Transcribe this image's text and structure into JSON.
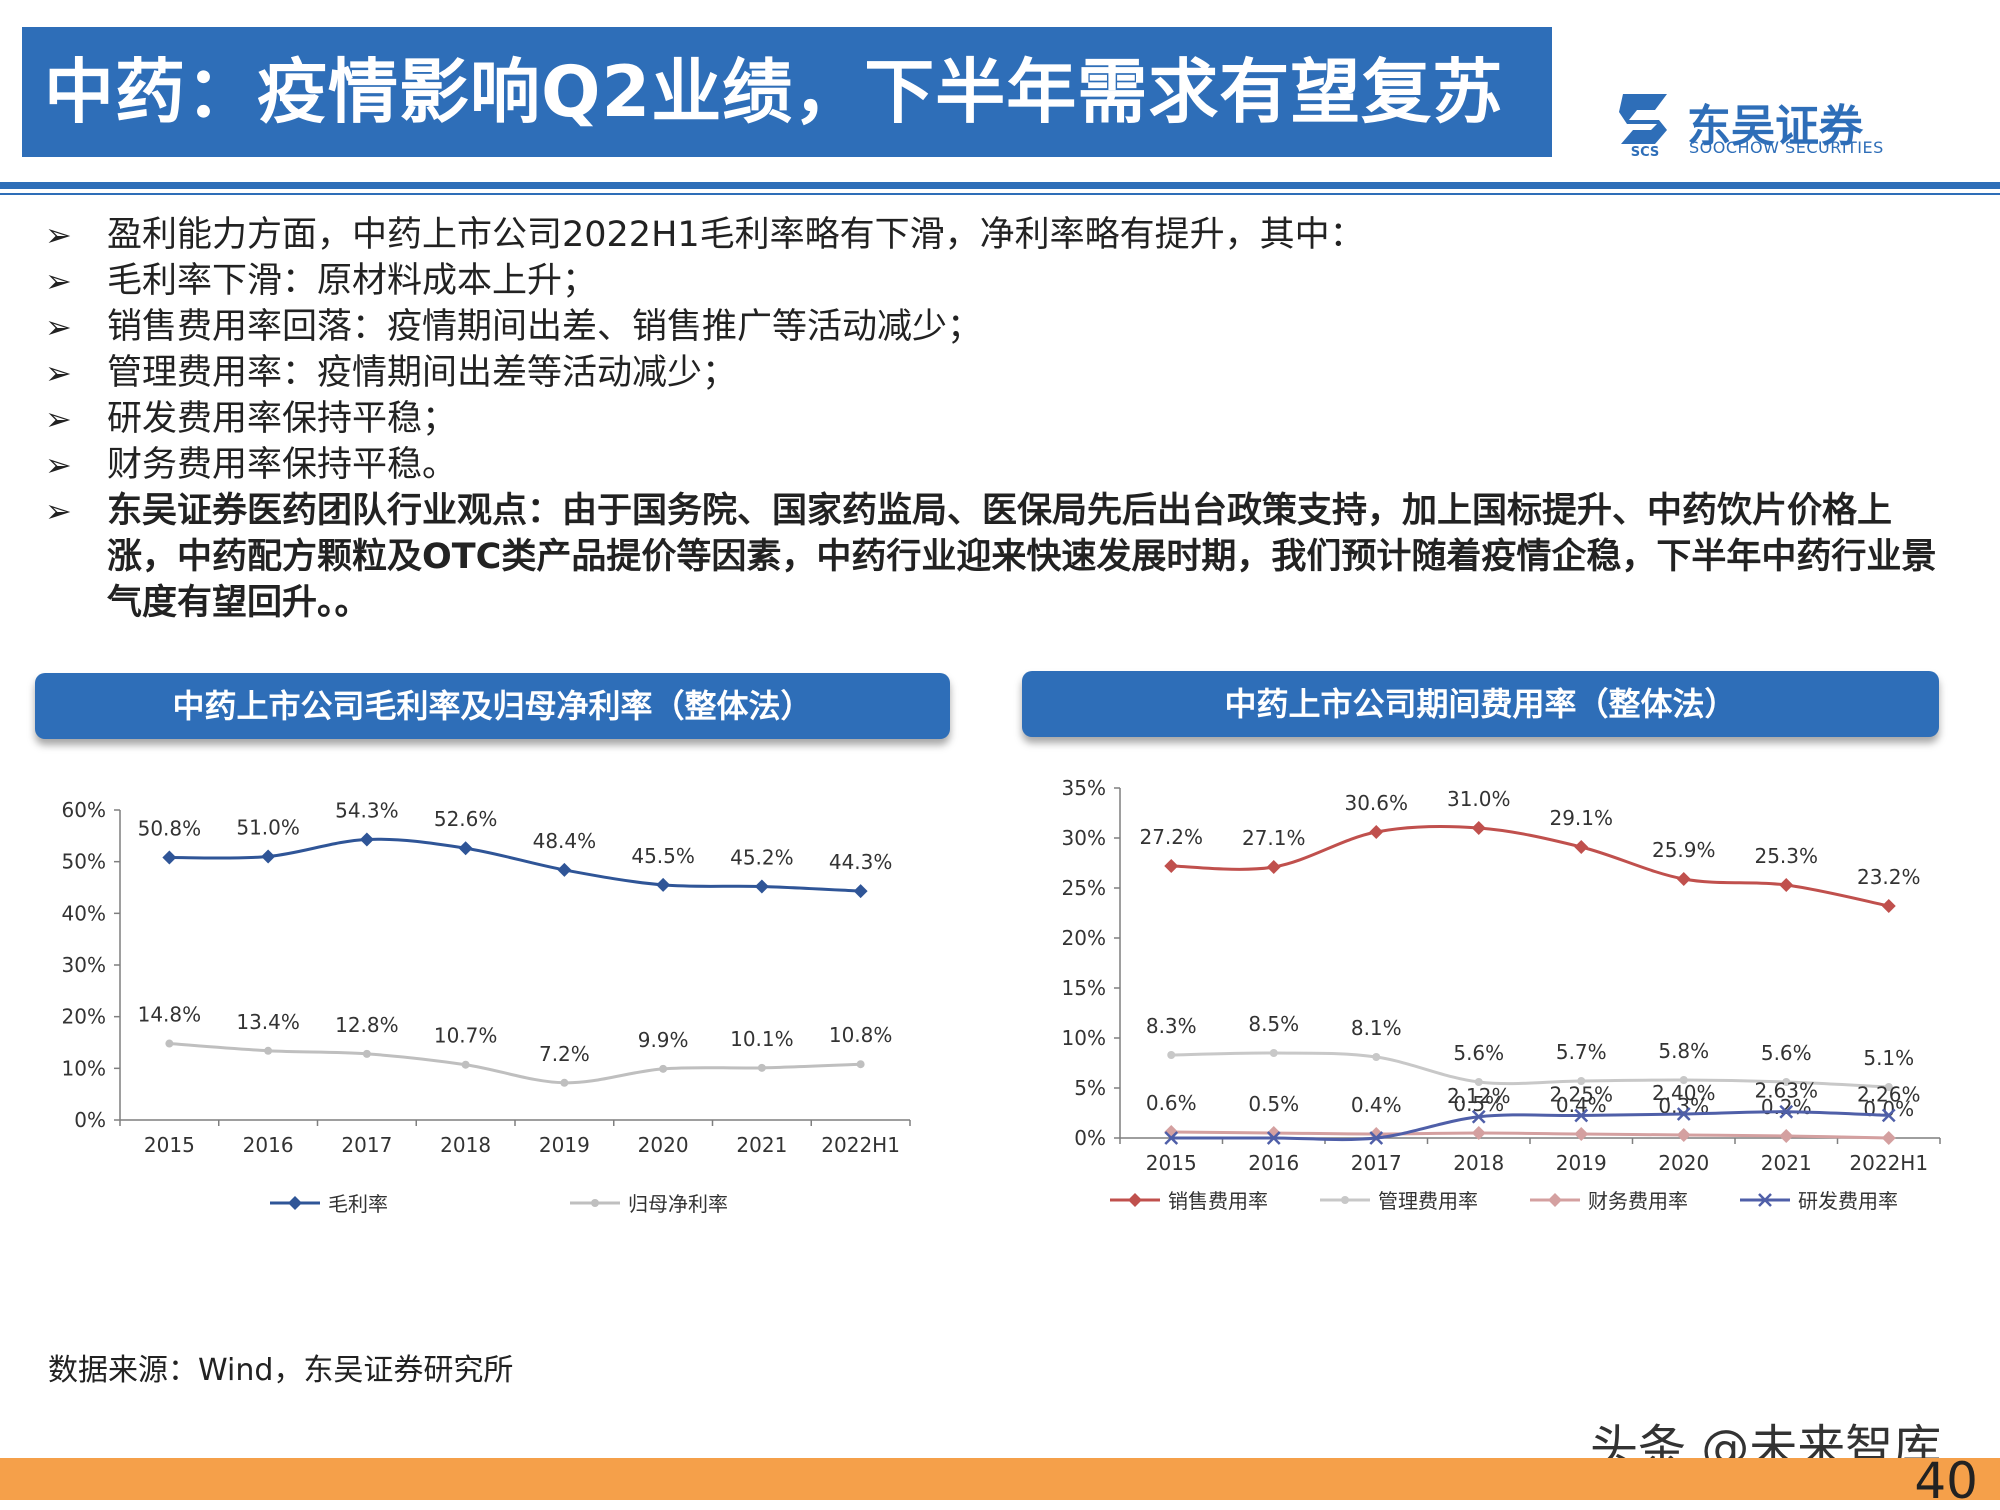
{
  "header": {
    "title": "中药：疫情影响Q2业绩，下半年需求有望复苏",
    "logo_cn": "东吴证券",
    "logo_en": "SOOCHOW SECURITIES",
    "logo_abbr": "SCS"
  },
  "bullets": [
    {
      "text": "盈利能力方面，中药上市公司2022H1毛利率略有下滑，净利率略有提升，其中：",
      "bold": false
    },
    {
      "text": "毛利率下滑：原材料成本上升；",
      "bold": false
    },
    {
      "text": "销售费用率回落：疫情期间出差、销售推广等活动减少；",
      "bold": false
    },
    {
      "text": "管理费用率：疫情期间出差等活动减少；",
      "bold": false
    },
    {
      "text": "研发费用率保持平稳；",
      "bold": false
    },
    {
      "text": "财务费用率保持平稳。",
      "bold": false
    },
    {
      "text": "东吴证券医药团队行业观点：由于国务院、国家药监局、医保局先后出台政策支持，加上国标提升、中药饮片价格上涨，中药配方颗粒及OTC类产品提价等因素，中药行业迎来快速发展时期，我们预计随着疫情企稳，下半年中药行业景气度有望回升。。",
      "bold": true
    }
  ],
  "bullet_marker": "➢",
  "source": "数据来源：Wind，东吴证券研究所",
  "watermark": "头条 @未来智库",
  "page_number": "40",
  "colors": {
    "brand_blue": "#2E6EB8",
    "orange_bar": "#F5A04A",
    "gross_margin": "#2F5597",
    "net_margin": "#BFBFBF",
    "selling": "#C0504D",
    "admin": "#C8C8C8",
    "finance": "#D4A0A0",
    "rnd": "#4F5FA8"
  },
  "chart_data": [
    {
      "type": "line",
      "title": "中药上市公司毛利率及归母净利率（整体法）",
      "categories": [
        "2015",
        "2016",
        "2017",
        "2018",
        "2019",
        "2020",
        "2021",
        "2022H1"
      ],
      "ylim": [
        0,
        60
      ],
      "yticks": [
        "0%",
        "10%",
        "20%",
        "30%",
        "40%",
        "50%",
        "60%"
      ],
      "unit": "%",
      "legend_position": "bottom",
      "series": [
        {
          "name": "毛利率",
          "values": [
            50.8,
            51.0,
            54.3,
            52.6,
            48.4,
            45.5,
            45.2,
            44.3
          ],
          "labels": [
            "50.8%",
            "51.0%",
            "54.3%",
            "52.6%",
            "48.4%",
            "45.5%",
            "45.2%",
            "44.3%"
          ],
          "marker": "diamond",
          "color": "#2F5597"
        },
        {
          "name": "归母净利率",
          "values": [
            14.8,
            13.4,
            12.8,
            10.7,
            7.2,
            9.9,
            10.1,
            10.8
          ],
          "labels": [
            "14.8%",
            "13.4%",
            "12.8%",
            "10.7%",
            "7.2%",
            "9.9%",
            "10.1%",
            "10.8%"
          ],
          "marker": "dot",
          "color": "#BFBFBF"
        }
      ]
    },
    {
      "type": "line",
      "title": "中药上市公司期间费用率（整体法）",
      "categories": [
        "2015",
        "2016",
        "2017",
        "2018",
        "2019",
        "2020",
        "2021",
        "2022H1"
      ],
      "ylim": [
        0,
        35
      ],
      "yticks": [
        "0%",
        "5%",
        "10%",
        "15%",
        "20%",
        "25%",
        "30%",
        "35%"
      ],
      "unit": "%",
      "legend_position": "bottom",
      "series": [
        {
          "name": "销售费用率",
          "values": [
            27.2,
            27.1,
            30.6,
            31.0,
            29.1,
            25.9,
            25.3,
            23.2
          ],
          "labels": [
            "27.2%",
            "27.1%",
            "30.6%",
            "31.0%",
            "29.1%",
            "25.9%",
            "25.3%",
            "23.2%"
          ],
          "marker": "diamond",
          "color": "#C0504D"
        },
        {
          "name": "管理费用率",
          "values": [
            8.3,
            8.5,
            8.1,
            5.6,
            5.7,
            5.8,
            5.6,
            5.1
          ],
          "labels": [
            "8.3%",
            "8.5%",
            "8.1%",
            "5.6%",
            "5.7%",
            "5.8%",
            "5.6%",
            "5.1%"
          ],
          "marker": "dot",
          "color": "#C8C8C8"
        },
        {
          "name": "财务费用率",
          "values": [
            0.6,
            0.5,
            0.4,
            0.5,
            0.4,
            0.3,
            0.2,
            0.0
          ],
          "labels": [
            "0.6%",
            "0.5%",
            "0.4%",
            "0.5%",
            "0.4%",
            "0.3%",
            "0.2%",
            "0.0%"
          ],
          "marker": "diamond",
          "color": "#D4A0A0"
        },
        {
          "name": "研发费用率",
          "values": [
            0.0,
            0.0,
            0.0,
            2.12,
            2.25,
            2.4,
            2.63,
            2.26
          ],
          "labels": [
            "",
            "",
            "",
            "2.12%",
            "2.25%",
            "2.40%",
            "2.63%",
            "2.26%"
          ],
          "marker": "cross",
          "color": "#4F5FA8"
        }
      ]
    }
  ]
}
